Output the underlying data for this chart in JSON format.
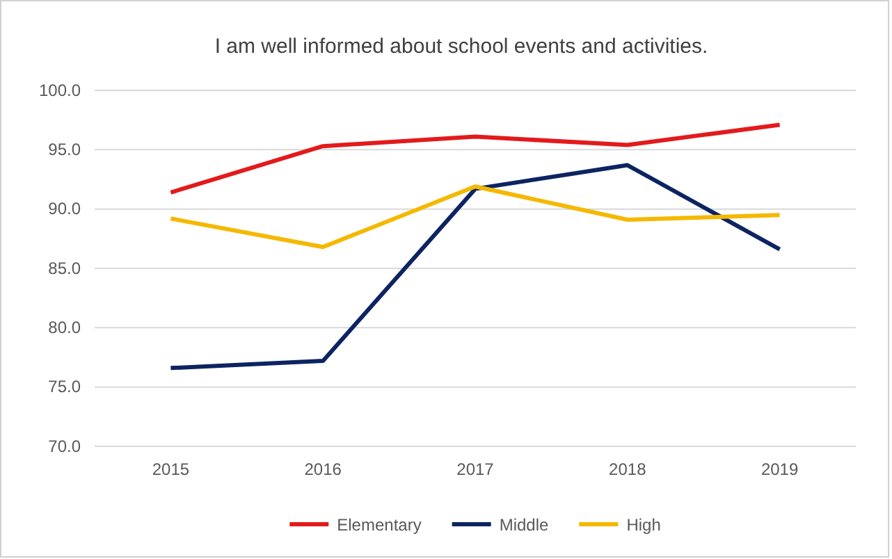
{
  "chart_data": {
    "type": "line",
    "title": "I am well informed about school events and activities.",
    "categories": [
      "2015",
      "2016",
      "2017",
      "2018",
      "2019"
    ],
    "series": [
      {
        "name": "Elementary",
        "color": "#e31a1c",
        "values": [
          91.4,
          95.3,
          96.1,
          95.4,
          97.1
        ]
      },
      {
        "name": "Middle",
        "color": "#0c2461",
        "values": [
          76.6,
          77.2,
          91.7,
          93.7,
          86.6
        ]
      },
      {
        "name": "High",
        "color": "#f5b800",
        "values": [
          89.2,
          86.8,
          91.9,
          89.1,
          89.5
        ]
      }
    ],
    "ylim": [
      70,
      100
    ],
    "yticks": [
      {
        "value": 70,
        "label": "70.0"
      },
      {
        "value": 75,
        "label": "75.0"
      },
      {
        "value": 80,
        "label": "80.0"
      },
      {
        "value": 85,
        "label": "85.0"
      },
      {
        "value": 90,
        "label": "90.0"
      },
      {
        "value": 95,
        "label": "95.0"
      },
      {
        "value": 100,
        "label": "100.0"
      }
    ],
    "grid": "y",
    "legend": "bottom",
    "marker": "none",
    "line_style": "solid"
  }
}
